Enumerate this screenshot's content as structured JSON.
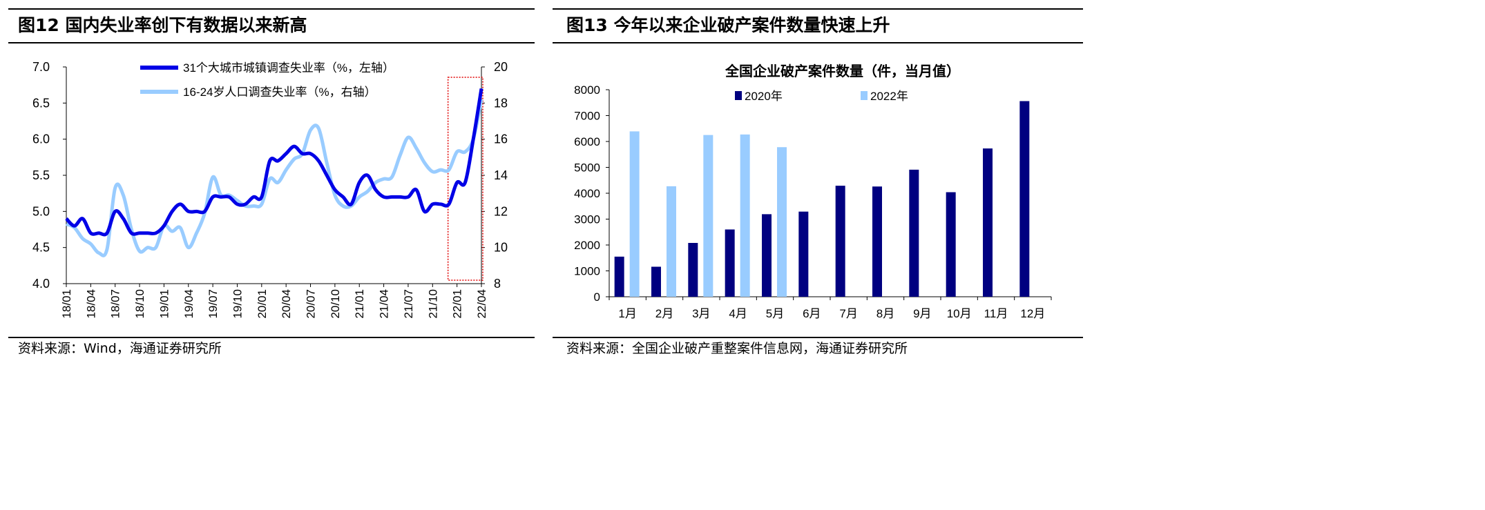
{
  "left": {
    "title": "图12 国内失业率创下有数据以来新高",
    "source": "资料来源：Wind，海通证券研究所",
    "chart_data": {
      "type": "line",
      "title": "",
      "x": [
        "18/01",
        "18/02",
        "18/03",
        "18/04",
        "18/05",
        "18/06",
        "18/07",
        "18/08",
        "18/09",
        "18/10",
        "18/11",
        "18/12",
        "19/01",
        "19/02",
        "19/03",
        "19/04",
        "19/05",
        "19/06",
        "19/07",
        "19/08",
        "19/09",
        "19/10",
        "19/11",
        "19/12",
        "20/01",
        "20/02",
        "20/03",
        "20/04",
        "20/05",
        "20/06",
        "20/07",
        "20/08",
        "20/09",
        "20/10",
        "20/11",
        "20/12",
        "21/01",
        "21/02",
        "21/03",
        "21/04",
        "21/05",
        "21/06",
        "21/07",
        "21/08",
        "21/09",
        "21/10",
        "21/11",
        "21/12",
        "22/01",
        "22/02",
        "22/03",
        "22/04"
      ],
      "xticks": [
        "18/01",
        "18/04",
        "18/07",
        "18/10",
        "19/01",
        "19/04",
        "19/07",
        "19/10",
        "20/01",
        "20/04",
        "20/07",
        "20/10",
        "21/01",
        "21/04",
        "21/07",
        "21/10",
        "22/01",
        "22/04"
      ],
      "left_axis": {
        "ylim": [
          4.0,
          7.0
        ],
        "ticks": [
          "4.0",
          "4.5",
          "5.0",
          "5.5",
          "6.0",
          "6.5",
          "7.0"
        ]
      },
      "right_axis": {
        "ylim": [
          8,
          20
        ],
        "ticks": [
          "8",
          "10",
          "12",
          "14",
          "16",
          "18",
          "20"
        ]
      },
      "series": [
        {
          "name": "31个大城市城镇调查失业率（%，左轴）",
          "axis": "left",
          "color": "#0000e6",
          "values": [
            4.9,
            4.8,
            4.9,
            4.7,
            4.7,
            4.7,
            5.0,
            4.9,
            4.7,
            4.7,
            4.7,
            4.7,
            4.8,
            5.0,
            5.1,
            5.0,
            5.0,
            5.0,
            5.2,
            5.2,
            5.2,
            5.1,
            5.1,
            5.2,
            5.2,
            5.7,
            5.7,
            5.8,
            5.9,
            5.8,
            5.8,
            5.7,
            5.5,
            5.3,
            5.2,
            5.1,
            5.4,
            5.5,
            5.3,
            5.2,
            5.2,
            5.2,
            5.2,
            5.3,
            5.0,
            5.1,
            5.1,
            5.1,
            5.4,
            5.4,
            6.0,
            6.7
          ]
        },
        {
          "name": "16-24岁人口调查失业率（%，右轴）",
          "axis": "right",
          "color": "#99ccff",
          "values": [
            11.3,
            11.1,
            10.5,
            10.2,
            9.7,
            9.9,
            13.3,
            12.9,
            11.0,
            9.8,
            10.0,
            10.0,
            11.2,
            10.9,
            11.1,
            10.0,
            10.8,
            11.9,
            13.9,
            12.9,
            12.9,
            12.6,
            12.3,
            12.3,
            12.4,
            13.8,
            13.6,
            14.3,
            14.9,
            15.2,
            16.5,
            16.6,
            14.7,
            12.9,
            12.3,
            12.3,
            12.8,
            13.1,
            13.6,
            13.8,
            13.9,
            15.1,
            16.1,
            15.5,
            14.7,
            14.2,
            14.3,
            14.3,
            15.3,
            15.3,
            16.0,
            18.2
          ]
        }
      ],
      "annotation": "dashed red box highlighting 22/01–22/04"
    }
  },
  "right": {
    "title": "图13 今年以来企业破产案件数量快速上升",
    "source": "资料来源：全国企业破产重整案件信息网，海通证券研究所",
    "chart_data": {
      "type": "bar",
      "title": "全国企业破产案件数量（件，当月值）",
      "categories": [
        "1月",
        "2月",
        "3月",
        "4月",
        "5月",
        "6月",
        "7月",
        "8月",
        "9月",
        "10月",
        "11月",
        "12月"
      ],
      "ylim": [
        0,
        8000
      ],
      "yticks": [
        "0",
        "1000",
        "2000",
        "3000",
        "4000",
        "5000",
        "6000",
        "7000",
        "8000"
      ],
      "series": [
        {
          "name": "2020年",
          "color": "#000080",
          "values": [
            1550,
            1160,
            2080,
            2600,
            3190,
            3290,
            4290,
            4260,
            4910,
            4040,
            5730,
            7560
          ]
        },
        {
          "name": "2022年",
          "color": "#99ccff",
          "values": [
            6390,
            4270,
            6250,
            6270,
            5780,
            null,
            null,
            null,
            null,
            null,
            null,
            null
          ]
        }
      ]
    }
  }
}
